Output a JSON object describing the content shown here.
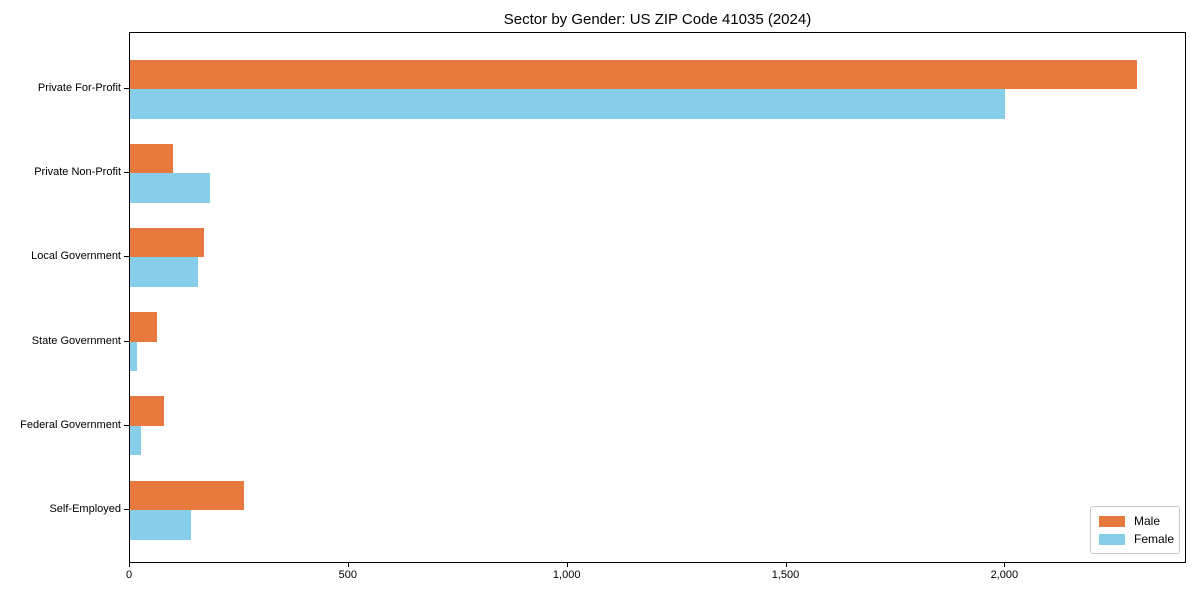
{
  "title": "Sector by Gender: US ZIP Code 41035 (2024)",
  "chart_data": {
    "type": "bar",
    "orientation": "horizontal",
    "title": "Sector by Gender: US ZIP Code 41035 (2024)",
    "categories": [
      "Private For-Profit",
      "Private Non-Profit",
      "Local Government",
      "State Government",
      "Federal Government",
      "Self-Employed"
    ],
    "series": [
      {
        "name": "Male",
        "color": "#e8793d",
        "values": [
          2300,
          98,
          170,
          62,
          77,
          260
        ]
      },
      {
        "name": "Female",
        "color": "#87ceeb",
        "values": [
          2000,
          182,
          155,
          17,
          25,
          140
        ]
      }
    ],
    "xlabel": "",
    "ylabel": "",
    "xlim": [
      0,
      2415
    ],
    "xticks": [
      0,
      500,
      1000,
      1500,
      2000
    ],
    "xtick_labels": [
      "0",
      "500",
      "1,000",
      "1,500",
      "2,000"
    ],
    "grid": false,
    "legend_position": "lower right"
  }
}
